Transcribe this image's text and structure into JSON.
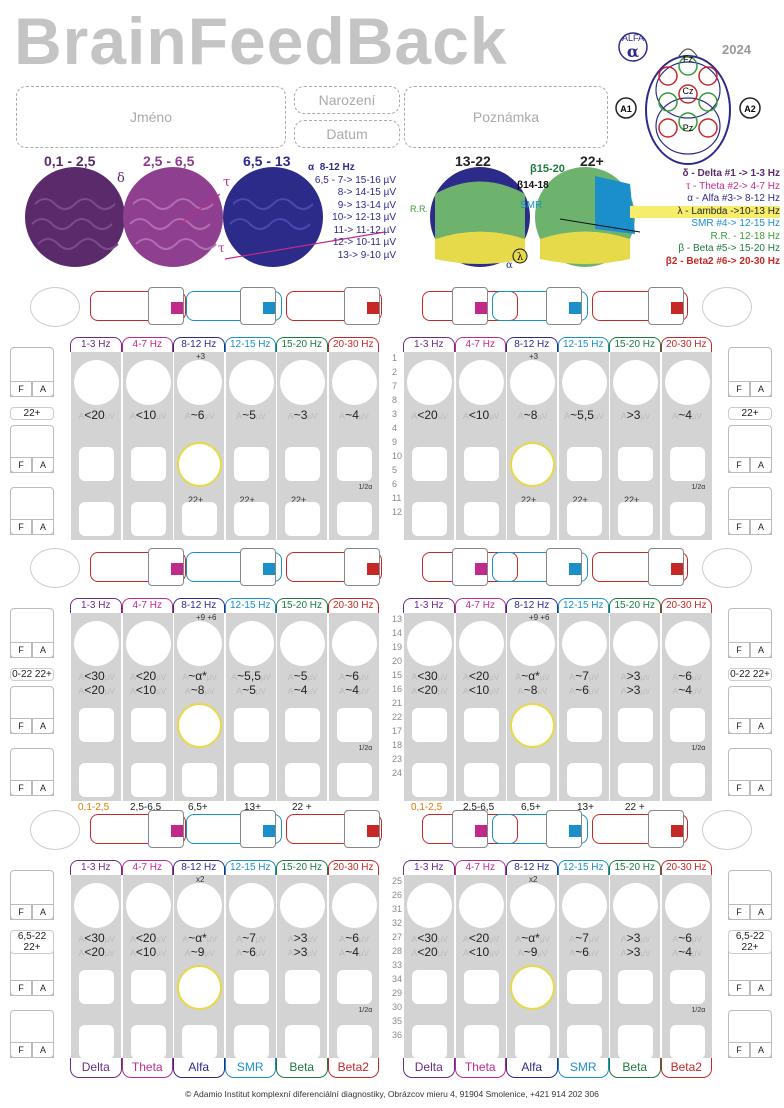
{
  "title": "BrainFeedBack",
  "year": "2024",
  "alfa_badge": "ALFA",
  "alfa_symbol": "α",
  "electrodes": [
    "Fz",
    "Cz",
    "Pz",
    "A1",
    "A2"
  ],
  "fields": {
    "name": "Jméno",
    "birth": "Narození",
    "date": "Datum",
    "note": "Poznámka"
  },
  "bands_top": [
    {
      "label": "0,1 - 2,5",
      "color": "#5b2a6b"
    },
    {
      "label": "2,5 - 6,5",
      "color": "#8e3f8f"
    },
    {
      "label": "6,5 - 13",
      "color": "#2d2b8a"
    },
    {
      "label": "13-22",
      "color": "#111111"
    },
    {
      "label": "22+",
      "color": "#111111"
    }
  ],
  "brain_symbols": {
    "delta": "δ",
    "theta": "τ",
    "theta2": "τ",
    "alpha": "α",
    "lambda": "λ",
    "rr": "R.R.",
    "smr": "SMR",
    "beta1": "β15-20",
    "beta2": "β14-18"
  },
  "alpha_table": {
    "head": "8-12 Hz",
    "rows": [
      "6,5 - 7-> 15-16 µV",
      "8-> 14-15 µV",
      "9-> 13-14 µV",
      "10-> 12-13 µV",
      "11-> 11-12 µV",
      "12-> 10-11 µV",
      "13->   9-10 µV"
    ]
  },
  "legend": [
    {
      "text": "δ - Delta #1 ->      1-3 Hz",
      "color": "#5b2a6b"
    },
    {
      "text": "τ - Theta #2->       4-7 Hz",
      "color": "#c02a8a"
    },
    {
      "text": "α - Alfa #3->     8-12 Hz",
      "color": "#2d2b8a"
    },
    {
      "text": "λ - Lambda ->10-13 Hz",
      "color": "#111111"
    },
    {
      "text": "SMR #4-> 12-15 Hz",
      "color": "#1a8fc9"
    },
    {
      "text": "R.R. -   12-18 Hz",
      "color": "#3a9a3a"
    },
    {
      "text": "β - Beta #5-> 15-20 Hz",
      "color": "#1d7a3e"
    },
    {
      "text": "β2 - Beta2 #6-> 20-30 Hz",
      "color": "#c62828"
    }
  ],
  "headers": [
    "1-3 Hz",
    "4-7 Hz",
    "8-12 Hz",
    "12-15 Hz",
    "15-20 Hz",
    "20-30 Hz"
  ],
  "header_colors": [
    "#6a2a8a",
    "#c02a8a",
    "#2d2b8a",
    "#1a8fc9",
    "#1d7a3e",
    "#c62828"
  ],
  "bottom_labels": [
    "Delta",
    "Theta",
    "Alfa",
    "SMR",
    "Beta",
    "Beta2"
  ],
  "blocks": [
    {
      "left": {
        "top": [
          "",
          "",
          "+3",
          "",
          "",
          ""
        ],
        "v1": [
          "<20",
          "<10",
          "~6",
          "~5",
          "~3",
          "~4"
        ],
        "v2": [
          "",
          "",
          "",
          "",
          "",
          ""
        ],
        "row2": [
          "",
          "",
          "22+",
          "22+",
          "22+",
          "1/2α"
        ],
        "extra": "22+"
      },
      "right": {
        "top": [
          "",
          "",
          "+3",
          "",
          "",
          ""
        ],
        "v1": [
          "<20",
          "<10",
          "~8",
          "~5,5",
          ">3",
          "~4"
        ],
        "v2": [
          "",
          "",
          "",
          "",
          "",
          ""
        ],
        "row2": [
          "",
          "",
          "22+",
          "22+",
          "22+",
          "1/2α"
        ],
        "extra": "22+"
      },
      "rows": [
        "1",
        "2",
        "7",
        "8",
        "3",
        "4",
        "9",
        "10",
        "5",
        "6",
        "11",
        "12"
      ]
    },
    {
      "left": {
        "top": [
          "",
          "",
          "+9 +6",
          "",
          "",
          ""
        ],
        "v1": [
          "<30",
          "<20",
          "~α*",
          "~5,5",
          "~5",
          "~6"
        ],
        "v2": [
          "<20",
          "<10",
          "~8",
          "~5",
          "~4",
          "~4"
        ],
        "row2": [
          "",
          "",
          "",
          "",
          "",
          "1/2α"
        ],
        "extra": "0-22 22+"
      },
      "right": {
        "top": [
          "",
          "",
          "+9 +6",
          "",
          "",
          ""
        ],
        "v1": [
          "<30",
          "<20",
          "~α*",
          "~7",
          ">3",
          "~6"
        ],
        "v2": [
          "<20",
          "<10",
          "~8",
          "~6",
          ">3",
          "~4"
        ],
        "row2": [
          "",
          "",
          "",
          "",
          "",
          "1/2α"
        ],
        "extra": "0-22 22+"
      },
      "rows": [
        "13",
        "14",
        "19",
        "20",
        "15",
        "16",
        "21",
        "22",
        "17",
        "18",
        "23",
        "24"
      ],
      "bottom_band_labels": [
        "0,1-2,5",
        "2,5-6,5",
        "6,5+",
        "13+",
        "22 +"
      ]
    },
    {
      "left": {
        "top": [
          "",
          "",
          "x2",
          "",
          "",
          ""
        ],
        "v1": [
          "<30",
          "<20",
          "~α*",
          "~7",
          ">3",
          "~6"
        ],
        "v2": [
          "<20",
          "<10",
          "~9",
          "~6",
          ">3",
          "~4"
        ],
        "row2": [
          "",
          "",
          "",
          "",
          "",
          "1/2α"
        ],
        "extra": "6,5-22 22+"
      },
      "right": {
        "top": [
          "",
          "",
          "x2",
          "",
          "",
          ""
        ],
        "v1": [
          "<30",
          "<20",
          "~α*",
          "~7",
          ">3",
          "~6"
        ],
        "v2": [
          "<20",
          "<10",
          "~9",
          "~6",
          ">3",
          "~4"
        ],
        "row2": [
          "",
          "",
          "",
          "",
          "",
          "1/2α"
        ],
        "extra": "6,5-22 22+"
      },
      "rows": [
        "25",
        "26",
        "31",
        "32",
        "27",
        "28",
        "33",
        "34",
        "29",
        "30",
        "35",
        "36"
      ]
    }
  ],
  "side_extras": [
    "22+",
    "0-22",
    "22+",
    "6,5-22",
    "22+"
  ],
  "footer": "© Adamio Institut komplexní diferenciální diagnostiky, Obrázcov mieru 4, 91904 Smolenice, +421 914 202 306"
}
